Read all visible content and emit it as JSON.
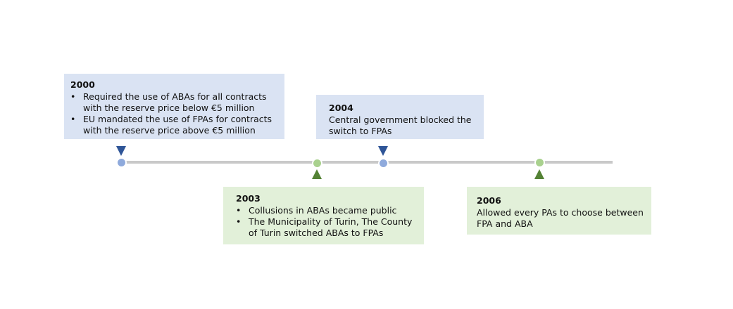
{
  "events": [
    {
      "year": "2000",
      "items": [
        "Required the use of ABAs for all contracts with the reserve price below €5 million",
        "EU mandated the use of FPAs for contracts with the reserve price above €5 million"
      ]
    },
    {
      "year": "2003",
      "items": [
        "Collusions in ABAs became public",
        "The Municipality of Turin, The County of Turin switched ABAs to FPAs"
      ]
    },
    {
      "year": "2004",
      "text": "Central government blocked the switch to FPAs"
    },
    {
      "year": "2006",
      "text": "Allowed every PAs to choose between FPA and ABA"
    }
  ],
  "colors": {
    "blue_box": "#dae3f3",
    "green_box": "#e2f0d9",
    "blue_marker": "#2f5597",
    "green_marker": "#548235",
    "blue_dot": "#8faadc",
    "green_dot": "#a9d18e",
    "line": "#c9c9c9"
  }
}
